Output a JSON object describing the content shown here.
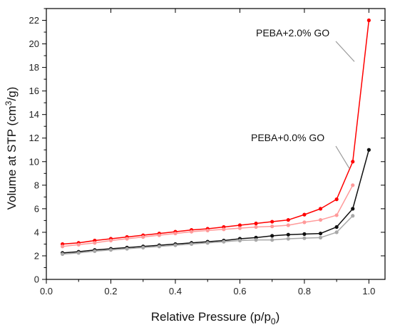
{
  "chart_data": {
    "type": "line",
    "xlabel": "Relative Pressure (p/p",
    "xlabel_sub": "0",
    "xlabel_tail": ")",
    "ylabel": "Volume at STP (cm",
    "ylabel_sup": "3",
    "ylabel_tail": "/g)",
    "xlim": [
      0.0,
      1.05
    ],
    "ylim": [
      0,
      23
    ],
    "xticks": [
      "0.0",
      "0.2",
      "0.4",
      "0.6",
      "0.8",
      "1.0"
    ],
    "yticks": [
      "0",
      "2",
      "4",
      "6",
      "8",
      "10",
      "12",
      "14",
      "16",
      "18",
      "20",
      "22"
    ],
    "grid": false,
    "annotations": [
      {
        "text": "PEBA+2.0% GO",
        "x": 0.955,
        "y": 18.5,
        "color": "#999999"
      },
      {
        "text": "PEBA+0.0% GO",
        "x": 0.94,
        "y": 9.4,
        "color": "#999999"
      }
    ],
    "series": [
      {
        "color": "#ff0000",
        "x": [
          0.05,
          0.1,
          0.15,
          0.2,
          0.25,
          0.3,
          0.35,
          0.4,
          0.45,
          0.5,
          0.55,
          0.6,
          0.65,
          0.7,
          0.75,
          0.8,
          0.85,
          0.9,
          0.95,
          1.0
        ],
        "y": [
          3.0,
          3.1,
          3.3,
          3.45,
          3.6,
          3.75,
          3.9,
          4.05,
          4.2,
          4.3,
          4.45,
          4.6,
          4.75,
          4.9,
          5.05,
          5.5,
          6.0,
          6.8,
          10.0,
          22.0
        ]
      },
      {
        "color": "#ff9a9a",
        "x": [
          0.05,
          0.1,
          0.15,
          0.2,
          0.25,
          0.3,
          0.35,
          0.4,
          0.45,
          0.5,
          0.55,
          0.6,
          0.65,
          0.7,
          0.75,
          0.8,
          0.85,
          0.9,
          0.95
        ],
        "y": [
          2.8,
          2.95,
          3.1,
          3.3,
          3.45,
          3.6,
          3.75,
          3.9,
          4.05,
          4.15,
          4.25,
          4.35,
          4.45,
          4.5,
          4.6,
          4.85,
          5.05,
          5.45,
          8.0
        ]
      },
      {
        "color": "#111111",
        "x": [
          0.05,
          0.1,
          0.15,
          0.2,
          0.25,
          0.3,
          0.35,
          0.4,
          0.45,
          0.5,
          0.55,
          0.6,
          0.65,
          0.7,
          0.75,
          0.8,
          0.85,
          0.9,
          0.95,
          1.0
        ],
        "y": [
          2.25,
          2.35,
          2.5,
          2.6,
          2.7,
          2.8,
          2.9,
          3.0,
          3.1,
          3.2,
          3.3,
          3.45,
          3.55,
          3.7,
          3.8,
          3.85,
          3.9,
          4.45,
          6.0,
          11.0
        ]
      },
      {
        "color": "#a8a8a8",
        "x": [
          0.05,
          0.1,
          0.15,
          0.2,
          0.25,
          0.3,
          0.35,
          0.4,
          0.45,
          0.5,
          0.55,
          0.6,
          0.65,
          0.7,
          0.75,
          0.8,
          0.85,
          0.9,
          0.95
        ],
        "y": [
          2.15,
          2.25,
          2.4,
          2.5,
          2.6,
          2.7,
          2.8,
          2.9,
          3.0,
          3.1,
          3.2,
          3.3,
          3.35,
          3.35,
          3.45,
          3.5,
          3.55,
          4.0,
          5.4
        ]
      }
    ]
  }
}
